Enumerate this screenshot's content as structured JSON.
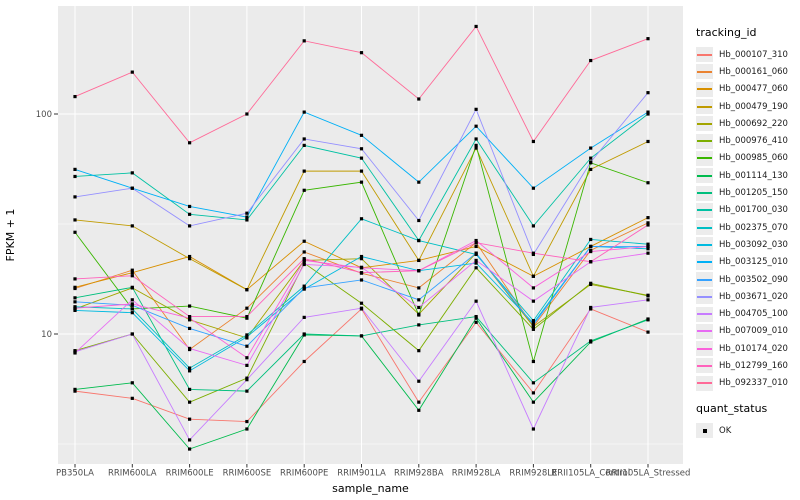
{
  "figure": {
    "background": "#ffffff",
    "panel_background": "#ebebeb",
    "grid_color": "#ffffff",
    "tick_color": "#333333",
    "axis_text_color": "#4d4d4d",
    "point_color": "#000000"
  },
  "chart_data": {
    "type": "line",
    "title": "",
    "xlabel": "sample_name",
    "ylabel": "FPKM + 1",
    "y_scale": "log10",
    "ylim": [
      2.56,
      310
    ],
    "y_tick_labels": [
      "10",
      "100"
    ],
    "y_ticks": [
      10,
      100
    ],
    "y_minor_ticks": [
      3.162,
      31.62,
      316.2
    ],
    "grid": true,
    "legend_position": "right",
    "legend_title": "tracking_id",
    "point_shape": "square",
    "categories": [
      "PB350LA",
      "RRIM600LA",
      "RRIM600LE",
      "RRIM600SE",
      "RRIM600PE",
      "RRIM901LA",
      "RRIM928BA",
      "RRIM928LA",
      "RRIM928LE",
      "RRII105LA_Control",
      "RRII105LA_Stressed"
    ],
    "series": [
      {
        "name": "Hb_000107_310",
        "color": "#F8766D",
        "values": [
          5.5,
          5.1,
          4.1,
          4.0,
          7.5,
          13.0,
          4.9,
          11.3,
          5.4,
          13.0,
          10.2
        ]
      },
      {
        "name": "Hb_000161_060",
        "color": "#EA8331",
        "values": [
          16.1,
          19.5,
          8.5,
          13.1,
          23.6,
          18.9,
          16.2,
          26.0,
          10.8,
          24.0,
          32.0
        ]
      },
      {
        "name": "Hb_000477_060",
        "color": "#D89000",
        "values": [
          16.3,
          19.0,
          22.5,
          15.9,
          26.4,
          20.0,
          21.6,
          25.0,
          18.3,
          25.0,
          33.8
        ]
      },
      {
        "name": "Hb_000479_190",
        "color": "#C09B00",
        "values": [
          33,
          31,
          22,
          15.9,
          55,
          55,
          21.6,
          70,
          18.3,
          56,
          75
        ]
      },
      {
        "name": "Hb_000692_220",
        "color": "#A3A500",
        "values": [
          13.0,
          16.2,
          11.6,
          9.6,
          21.6,
          22.0,
          12.3,
          23.3,
          10.8,
          16.8,
          15.0
        ]
      },
      {
        "name": "Hb_000976_410",
        "color": "#7CAE00",
        "values": [
          8.4,
          10.0,
          4.9,
          6.3,
          21.0,
          13.8,
          8.4,
          20.0,
          10.5,
          17.0,
          14.9
        ]
      },
      {
        "name": "Hb_000985_060",
        "color": "#39B600",
        "values": [
          29,
          13.0,
          13.4,
          11.8,
          45,
          49,
          12.2,
          72,
          7.5,
          60,
          48.7
        ]
      },
      {
        "name": "Hb_001114_130",
        "color": "#00BB4E",
        "values": [
          5.6,
          6.0,
          3.0,
          3.7,
          9.9,
          9.8,
          4.5,
          11.8,
          4.9,
          9.2,
          11.7
        ]
      },
      {
        "name": "Hb_001205_150",
        "color": "#00BF7D",
        "values": [
          14.6,
          16.3,
          5.6,
          5.5,
          10.0,
          9.8,
          11.0,
          12.0,
          6.0,
          9.3,
          11.6
        ]
      },
      {
        "name": "Hb_001700_030",
        "color": "#00C1A3",
        "values": [
          52,
          54,
          35,
          33,
          72,
          63,
          26.6,
          77,
          31,
          63,
          100
        ]
      },
      {
        "name": "Hb_002375_070",
        "color": "#00BFC4",
        "values": [
          13.3,
          13.0,
          7.0,
          9.9,
          16.5,
          33.4,
          26.6,
          23.0,
          11.5,
          26.9,
          25.6
        ]
      },
      {
        "name": "Hb_003092_030",
        "color": "#00BAE0",
        "values": [
          12.8,
          12.5,
          6.8,
          9.7,
          16.0,
          22.5,
          19.4,
          21.0,
          11.2,
          25.0,
          24.4
        ]
      },
      {
        "name": "Hb_003125_010",
        "color": "#00B0F6",
        "values": [
          56,
          46,
          38,
          34,
          102,
          80,
          49,
          88,
          46,
          70,
          102
        ]
      },
      {
        "name": "Hb_003502_090",
        "color": "#35A2FF",
        "values": [
          14.0,
          13.5,
          10.6,
          8.8,
          16.2,
          17.6,
          14.3,
          23.3,
          11.0,
          25.0,
          25.0
        ]
      },
      {
        "name": "Hb_003671_020",
        "color": "#9590FF",
        "values": [
          42,
          46,
          31,
          35.4,
          77,
          69.5,
          32.8,
          105,
          23,
          60.5,
          125
        ]
      },
      {
        "name": "Hb_004705_100",
        "color": "#C77CFF",
        "values": [
          8.3,
          10.0,
          3.3,
          6.2,
          11.9,
          13.1,
          6.1,
          14.1,
          3.7,
          13.2,
          14.3
        ]
      },
      {
        "name": "Hb_007009_010",
        "color": "#E76BF3",
        "values": [
          8.2,
          14.3,
          8.6,
          7.2,
          20.7,
          20.1,
          13.2,
          21.6,
          14.1,
          21.3,
          23.3
        ]
      },
      {
        "name": "Hb_010174_020",
        "color": "#FA62DB",
        "values": [
          13.1,
          13.7,
          11.8,
          7.8,
          21.6,
          20.0,
          19.4,
          26.6,
          16.2,
          23.7,
          25.0
        ]
      },
      {
        "name": "Hb_012799_160",
        "color": "#FF62BC",
        "values": [
          17.8,
          18.4,
          12.0,
          12.0,
          22.0,
          19.0,
          19.4,
          26.0,
          23.3,
          21.3,
          31.3
        ]
      },
      {
        "name": "Hb_092337_010",
        "color": "#FF6A98",
        "values": [
          120,
          155,
          74,
          100,
          215,
          190,
          117,
          250,
          75,
          175,
          220
        ]
      }
    ],
    "legend2_title": "quant_status",
    "legend2_items": [
      {
        "label": "OK",
        "shape": "square",
        "color": "#000000"
      }
    ]
  }
}
